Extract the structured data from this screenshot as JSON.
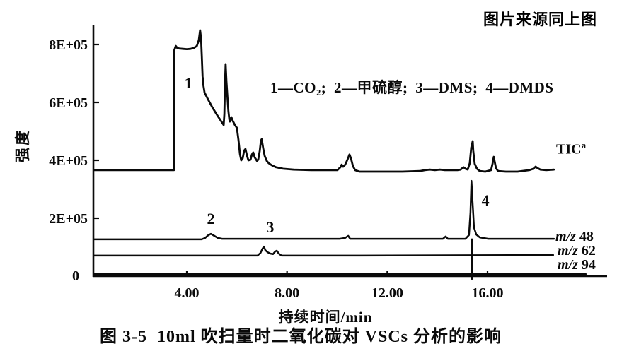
{
  "header": {
    "source_note": "图片来源同上图"
  },
  "legend": {
    "text": "1—CO₂; 2—甲硫醇; 3—DMS; 4—DMDS"
  },
  "axes": {
    "y_label": "强度",
    "x_label": "持续时间/min",
    "origin_label": "0",
    "x_ticks": [
      {
        "t": 4,
        "label": "4.00"
      },
      {
        "t": 8,
        "label": "8.00"
      },
      {
        "t": 12,
        "label": "12.00"
      },
      {
        "t": 16,
        "label": "16.00"
      }
    ],
    "y_ticks": [
      {
        "v": 8,
        "label": "8E+05"
      },
      {
        "v": 6,
        "label": "6E+05"
      },
      {
        "v": 4,
        "label": "4E+05"
      },
      {
        "v": 2,
        "label": "2E+05"
      }
    ]
  },
  "trace_labels": {
    "tic": {
      "base": "TIC",
      "sup": "a"
    },
    "mz48": {
      "prefix": "m/z",
      "value": "48"
    },
    "mz62": {
      "prefix": "m/z",
      "value": "62"
    },
    "mz94": {
      "prefix": "m/z",
      "value": "94"
    }
  },
  "caption": {
    "fig_no": "图 3-5",
    "text": "10ml 吹扫量时二氧化碳对 VSCs 分析的影响"
  },
  "chart_data": {
    "type": "line",
    "title": "",
    "xlabel": "持续时间/min",
    "ylabel": "强度",
    "x_unit": "min",
    "y_unit": "counts ×1E+05",
    "xlim": [
      0.27,
      20.8
    ],
    "ylim": [
      0,
      8.68
    ],
    "grid": false,
    "series": [
      {
        "name": "TIC",
        "points": [
          [
            0.3,
            3.66
          ],
          [
            3.49,
            3.66
          ],
          [
            3.5,
            7.8
          ],
          [
            3.56,
            7.95
          ],
          [
            3.58,
            7.93
          ],
          [
            3.62,
            7.88
          ],
          [
            3.7,
            7.86
          ],
          [
            3.85,
            7.85
          ],
          [
            4.0,
            7.84
          ],
          [
            4.15,
            7.85
          ],
          [
            4.28,
            7.88
          ],
          [
            4.4,
            7.95
          ],
          [
            4.48,
            8.15
          ],
          [
            4.53,
            8.49
          ],
          [
            4.57,
            8.2
          ],
          [
            4.6,
            7.6
          ],
          [
            4.63,
            6.9
          ],
          [
            4.66,
            6.6
          ],
          [
            4.71,
            6.34
          ],
          [
            4.82,
            6.15
          ],
          [
            5.02,
            5.83
          ],
          [
            5.21,
            5.56
          ],
          [
            5.38,
            5.34
          ],
          [
            5.47,
            5.22
          ],
          [
            5.5,
            5.6
          ],
          [
            5.52,
            6.5
          ],
          [
            5.55,
            7.32
          ],
          [
            5.58,
            6.73
          ],
          [
            5.62,
            6.2
          ],
          [
            5.66,
            5.7
          ],
          [
            5.7,
            5.4
          ],
          [
            5.72,
            5.34
          ],
          [
            5.78,
            5.49
          ],
          [
            5.83,
            5.37
          ],
          [
            5.92,
            5.22
          ],
          [
            6.0,
            5.12
          ],
          [
            6.06,
            4.71
          ],
          [
            6.12,
            4.22
          ],
          [
            6.17,
            4.0
          ],
          [
            6.23,
            4.07
          ],
          [
            6.29,
            4.34
          ],
          [
            6.34,
            4.39
          ],
          [
            6.4,
            4.17
          ],
          [
            6.46,
            4.0
          ],
          [
            6.54,
            4.02
          ],
          [
            6.6,
            4.2
          ],
          [
            6.65,
            4.27
          ],
          [
            6.71,
            4.1
          ],
          [
            6.8,
            3.98
          ],
          [
            6.85,
            4.02
          ],
          [
            6.91,
            4.32
          ],
          [
            6.96,
            4.68
          ],
          [
            6.99,
            4.73
          ],
          [
            7.05,
            4.41
          ],
          [
            7.11,
            4.15
          ],
          [
            7.19,
            3.98
          ],
          [
            7.27,
            3.9
          ],
          [
            7.39,
            3.83
          ],
          [
            7.56,
            3.76
          ],
          [
            7.84,
            3.71
          ],
          [
            8.26,
            3.68
          ],
          [
            8.97,
            3.66
          ],
          [
            10.01,
            3.66
          ],
          [
            10.13,
            3.76
          ],
          [
            10.18,
            3.85
          ],
          [
            10.24,
            3.78
          ],
          [
            10.32,
            3.85
          ],
          [
            10.41,
            4.02
          ],
          [
            10.49,
            4.2
          ],
          [
            10.55,
            4.07
          ],
          [
            10.63,
            3.8
          ],
          [
            10.72,
            3.66
          ],
          [
            10.89,
            3.61
          ],
          [
            11.8,
            3.61
          ],
          [
            12.6,
            3.61
          ],
          [
            13.3,
            3.63
          ],
          [
            13.5,
            3.66
          ],
          [
            13.7,
            3.68
          ],
          [
            13.9,
            3.66
          ],
          [
            14.1,
            3.68
          ],
          [
            14.3,
            3.66
          ],
          [
            14.5,
            3.66
          ],
          [
            14.8,
            3.66
          ],
          [
            14.93,
            3.68
          ],
          [
            15.04,
            3.76
          ],
          [
            15.12,
            3.71
          ],
          [
            15.21,
            3.68
          ],
          [
            15.29,
            3.9
          ],
          [
            15.35,
            4.44
          ],
          [
            15.41,
            4.66
          ],
          [
            15.43,
            4.34
          ],
          [
            15.49,
            3.88
          ],
          [
            15.58,
            3.71
          ],
          [
            15.69,
            3.63
          ],
          [
            15.91,
            3.61
          ],
          [
            16.14,
            3.66
          ],
          [
            16.2,
            3.88
          ],
          [
            16.25,
            4.12
          ],
          [
            16.28,
            3.98
          ],
          [
            16.34,
            3.73
          ],
          [
            16.42,
            3.63
          ],
          [
            16.73,
            3.61
          ],
          [
            17.2,
            3.61
          ],
          [
            17.66,
            3.66
          ],
          [
            17.83,
            3.71
          ],
          [
            17.92,
            3.78
          ],
          [
            18.0,
            3.73
          ],
          [
            18.11,
            3.68
          ],
          [
            18.34,
            3.66
          ],
          [
            18.65,
            3.68
          ]
        ]
      },
      {
        "name": "m/z 48",
        "points": [
          [
            0.3,
            1.27
          ],
          [
            4.59,
            1.27
          ],
          [
            4.73,
            1.32
          ],
          [
            4.85,
            1.41
          ],
          [
            4.96,
            1.46
          ],
          [
            5.1,
            1.39
          ],
          [
            5.24,
            1.32
          ],
          [
            5.41,
            1.29
          ],
          [
            6.7,
            1.29
          ],
          [
            9.2,
            1.29
          ],
          [
            10.1,
            1.29
          ],
          [
            10.32,
            1.32
          ],
          [
            10.44,
            1.39
          ],
          [
            10.52,
            1.29
          ],
          [
            12.1,
            1.29
          ],
          [
            14.22,
            1.29
          ],
          [
            14.33,
            1.37
          ],
          [
            14.42,
            1.29
          ],
          [
            15.12,
            1.29
          ],
          [
            15.26,
            1.42
          ],
          [
            15.32,
            2.2
          ],
          [
            15.36,
            3.29
          ],
          [
            15.41,
            2.46
          ],
          [
            15.46,
            1.68
          ],
          [
            15.55,
            1.44
          ],
          [
            15.69,
            1.34
          ],
          [
            16.03,
            1.29
          ],
          [
            18.65,
            1.29
          ]
        ]
      },
      {
        "name": "m/z 62",
        "points": [
          [
            0.3,
            0.71
          ],
          [
            6.82,
            0.71
          ],
          [
            6.94,
            0.8
          ],
          [
            7.02,
            0.95
          ],
          [
            7.08,
            1.02
          ],
          [
            7.13,
            0.9
          ],
          [
            7.22,
            0.83
          ],
          [
            7.33,
            0.78
          ],
          [
            7.44,
            0.76
          ],
          [
            7.53,
            0.85
          ],
          [
            7.59,
            0.88
          ],
          [
            7.67,
            0.78
          ],
          [
            7.78,
            0.71
          ],
          [
            10.7,
            0.71
          ],
          [
            18.62,
            0.73
          ]
        ]
      },
      {
        "name": "m/z 94",
        "points": [
          [
            0.3,
            0.07
          ],
          [
            19.92,
            0.07
          ]
        ]
      }
    ],
    "spike": {
      "t": 15.38,
      "v_top": 1.3,
      "v_bottom": -0.12
    },
    "annotations": [
      {
        "text": "1",
        "compound": "CO₂",
        "t": 4.06,
        "v": 6.68
      },
      {
        "text": "2",
        "compound": "甲硫醇",
        "t": 4.96,
        "v": 2.0
      },
      {
        "text": "3",
        "compound": "DMS",
        "t": 7.33,
        "v": 1.71
      },
      {
        "text": "4",
        "compound": "DMDS",
        "t": 15.92,
        "v": 2.63
      }
    ]
  }
}
